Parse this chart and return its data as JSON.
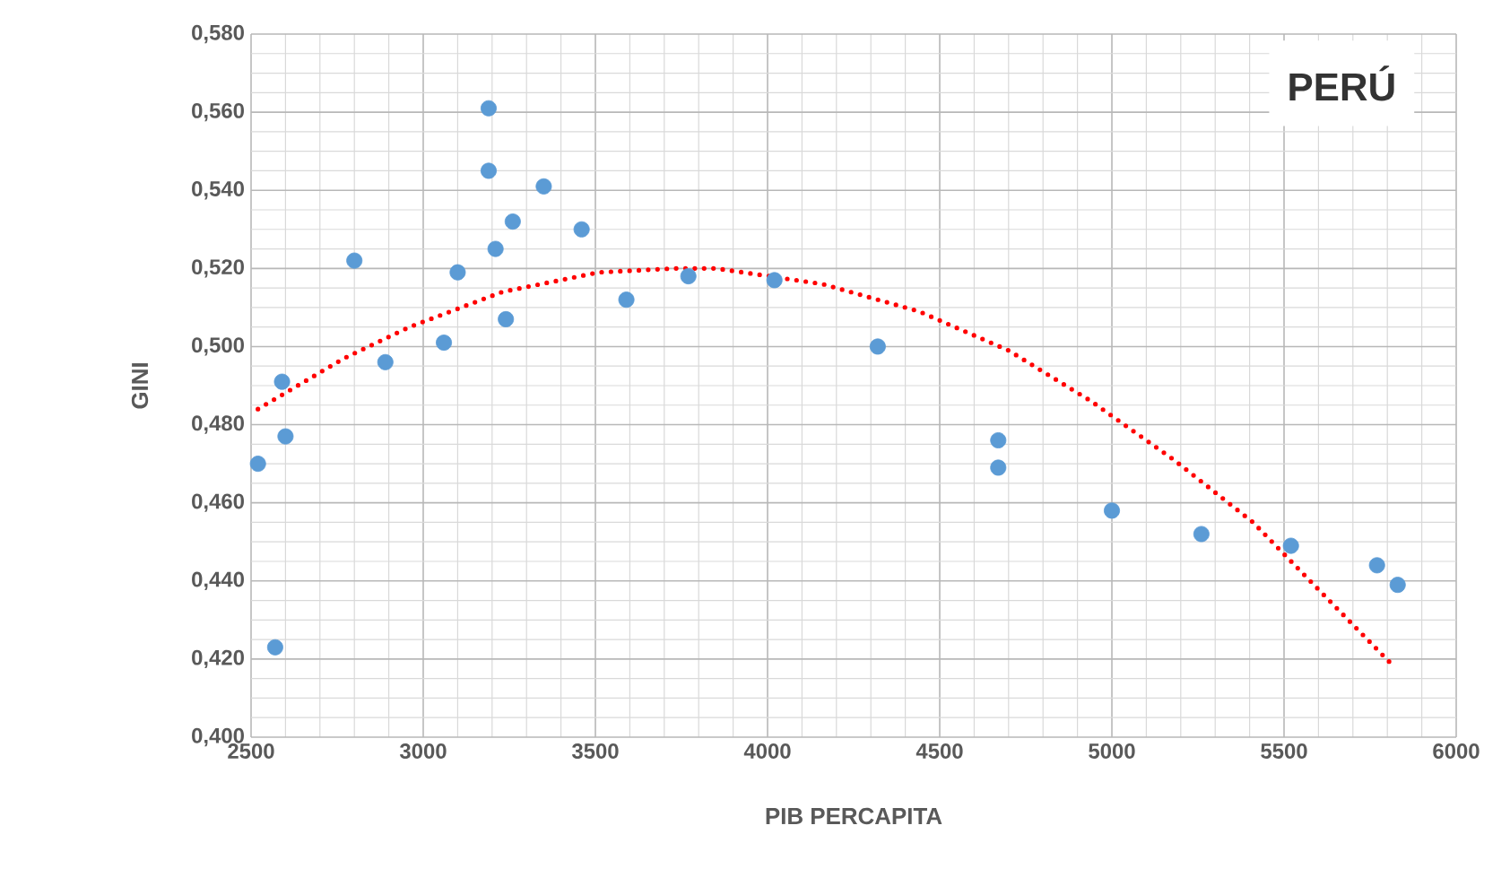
{
  "chart_data": {
    "type": "scatter",
    "title": "PERÚ",
    "xlabel": "PIB PERCAPITA",
    "ylabel": "GINI",
    "xlim": [
      2500,
      6000
    ],
    "xticks": [
      2500,
      3000,
      3500,
      4000,
      4500,
      5000,
      5500,
      6000
    ],
    "ylim": [
      0.4,
      0.58
    ],
    "yticks": [
      {
        "value": 0.4,
        "label": "0,400"
      },
      {
        "value": 0.42,
        "label": "0,420"
      },
      {
        "value": 0.44,
        "label": "0,440"
      },
      {
        "value": 0.46,
        "label": "0,460"
      },
      {
        "value": 0.48,
        "label": "0,480"
      },
      {
        "value": 0.5,
        "label": "0,500"
      },
      {
        "value": 0.52,
        "label": "0,520"
      },
      {
        "value": 0.54,
        "label": "0,540"
      },
      {
        "value": 0.56,
        "label": "0,560"
      },
      {
        "value": 0.58,
        "label": "0,580"
      }
    ],
    "grid": true,
    "series": [
      {
        "color": "#5b9bd5",
        "marker": "circle",
        "x": [
          2520,
          2590,
          2600,
          2570,
          2800,
          2890,
          3060,
          3100,
          3190,
          3190,
          3210,
          3240,
          3260,
          3350,
          3460,
          3590,
          3770,
          4020,
          4320,
          4670,
          4670,
          5000,
          5260,
          5520,
          5770,
          5830
        ],
        "values": [
          0.47,
          0.491,
          0.477,
          0.423,
          0.522,
          0.496,
          0.501,
          0.519,
          0.561,
          0.545,
          0.525,
          0.507,
          0.532,
          0.541,
          0.53,
          0.512,
          0.518,
          0.517,
          0.5,
          0.476,
          0.469,
          0.458,
          0.452,
          0.449,
          0.444,
          0.439
        ]
      },
      {
        "type": "line",
        "color": "#ff0000",
        "marker": "none",
        "line_style": "dotted",
        "x": [
          2520,
          2770,
          2960,
          3230,
          3510,
          3730,
          3850,
          4160,
          4440,
          4700,
          4940,
          5180,
          5410,
          5620,
          5820
        ],
        "values": [
          0.484,
          0.497,
          0.505,
          0.514,
          0.519,
          0.52,
          0.52,
          0.516,
          0.509,
          0.499,
          0.486,
          0.471,
          0.455,
          0.436,
          0.418
        ]
      }
    ]
  }
}
